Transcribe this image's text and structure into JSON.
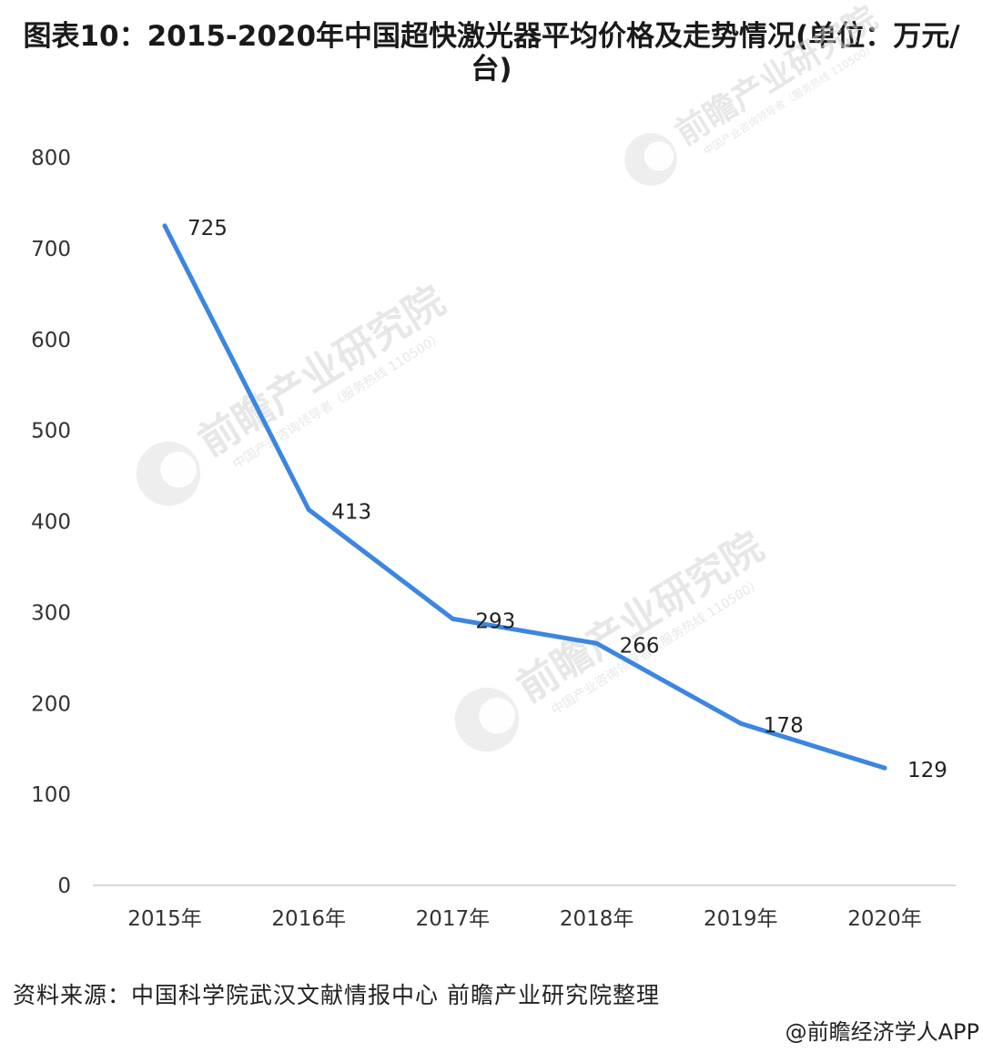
{
  "title": "图表10：2015-2020年中国超快激光器平均价格及走势情况(单位：万元/台)",
  "source": "资料来源：中国科学院武汉文献情报中心 前瞻产业研究院整理",
  "credit": "@前瞻经济学人APP",
  "watermark": {
    "name": "前瞻产业研究院",
    "sub": "中国产业咨询领导者（服务热线 110500）"
  },
  "colors": {
    "line": "#3b86e0",
    "axis": "#c8c8c8"
  },
  "chart_data": {
    "type": "line",
    "title": "图表10：2015-2020年中国超快激光器平均价格及走势情况(单位：万元/台)",
    "xlabel": "",
    "ylabel": "",
    "categories": [
      "2015年",
      "2016年",
      "2017年",
      "2018年",
      "2019年",
      "2020年"
    ],
    "series": [
      {
        "values": [
          725,
          413,
          293,
          266,
          178,
          129
        ]
      }
    ],
    "ylim": [
      0,
      800
    ],
    "yticks": [
      0,
      100,
      200,
      300,
      400,
      500,
      600,
      700,
      800
    ],
    "grid": false,
    "data_labels": true,
    "legend": "none"
  }
}
